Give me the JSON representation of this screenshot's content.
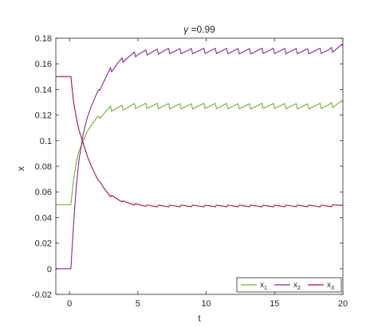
{
  "chart_data": {
    "type": "line",
    "title_symbol": "γ",
    "title_value": " =0.99",
    "xlabel": "t",
    "ylabel": "x",
    "xlim": [
      -1,
      20
    ],
    "ylim": [
      -0.02,
      0.18
    ],
    "xticks": [
      0,
      5,
      10,
      15,
      20
    ],
    "xtick_labels": [
      "0",
      "5",
      "10",
      "15",
      "20"
    ],
    "yticks": [
      -0.02,
      0,
      0.02,
      0.04,
      0.06,
      0.08,
      0.1,
      0.12,
      0.14,
      0.16,
      0.18
    ],
    "ytick_labels": [
      "-0.02",
      "0",
      "0.02",
      "0.04",
      "0.06",
      "0.08",
      "0.1",
      "0.12",
      "0.14",
      "0.16",
      "0.18"
    ],
    "grid": false,
    "legend_position": "bottom-right",
    "series": [
      {
        "name": "x",
        "subscript": "1",
        "color": "#77ac30",
        "x": [
          -1,
          0,
          0.1,
          0.3,
          0.5,
          0.7,
          1.0,
          1.3,
          1.6,
          2.0,
          2.3,
          2.7,
          3.0,
          4,
          5,
          6,
          7,
          8,
          9,
          10,
          11,
          12,
          13,
          14,
          15,
          16,
          17,
          18,
          19,
          20
        ],
        "values": [
          0.05,
          0.05,
          0.05,
          0.07,
          0.083,
          0.092,
          0.1,
          0.107,
          0.112,
          0.118,
          0.12,
          0.123,
          0.125,
          0.126,
          0.127,
          0.127,
          0.127,
          0.127,
          0.127,
          0.127,
          0.127,
          0.127,
          0.127,
          0.127,
          0.127,
          0.127,
          0.127,
          0.127,
          0.127,
          0.13
        ]
      },
      {
        "name": "x",
        "subscript": "2",
        "color": "#7e2f8e",
        "x": [
          -1,
          0,
          0.1,
          0.3,
          0.5,
          0.7,
          1.0,
          1.3,
          1.6,
          2.0,
          2.3,
          2.7,
          3.0,
          3.5,
          4,
          5,
          6,
          7,
          8,
          9,
          10,
          11,
          12,
          13,
          14,
          15,
          16,
          17,
          18,
          19,
          20
        ],
        "values": [
          0,
          0,
          0,
          0.035,
          0.065,
          0.085,
          0.105,
          0.118,
          0.127,
          0.137,
          0.143,
          0.15,
          0.155,
          0.16,
          0.164,
          0.168,
          0.169,
          0.17,
          0.17,
          0.17,
          0.17,
          0.17,
          0.17,
          0.17,
          0.17,
          0.17,
          0.17,
          0.17,
          0.17,
          0.17,
          0.174
        ]
      },
      {
        "name": "x",
        "subscript": "3",
        "color": "#a2142f",
        "x": [
          -1,
          0,
          0.1,
          0.3,
          0.5,
          0.7,
          1.0,
          1.3,
          1.6,
          2.0,
          2.5,
          3.0,
          4,
          5,
          6,
          7,
          8,
          9,
          10,
          11,
          12,
          13,
          14,
          15,
          16,
          17,
          18,
          19,
          20
        ],
        "values": [
          0.15,
          0.15,
          0.15,
          0.13,
          0.118,
          0.108,
          0.098,
          0.088,
          0.08,
          0.071,
          0.063,
          0.057,
          0.052,
          0.05,
          0.049,
          0.049,
          0.049,
          0.049,
          0.049,
          0.049,
          0.049,
          0.049,
          0.049,
          0.049,
          0.049,
          0.049,
          0.049,
          0.049,
          0.05
        ]
      }
    ]
  }
}
